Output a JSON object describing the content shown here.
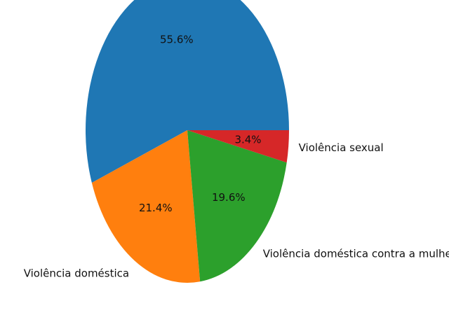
{
  "chart_data": {
    "type": "pie",
    "categories": [
      "",
      "Violência doméstica",
      "Violência doméstica contra a mulher",
      "Violência sexual"
    ],
    "values": [
      55.6,
      21.4,
      19.6,
      3.4
    ],
    "percent_labels": [
      "55.6%",
      "21.4%",
      "19.6%",
      "3.4%"
    ],
    "colors": [
      "#1f77b4",
      "#ff7f0e",
      "#2ca02c",
      "#d62728"
    ],
    "start_angle_deg": 0,
    "direction": "counterclockwise",
    "title": "",
    "legend": "none"
  }
}
